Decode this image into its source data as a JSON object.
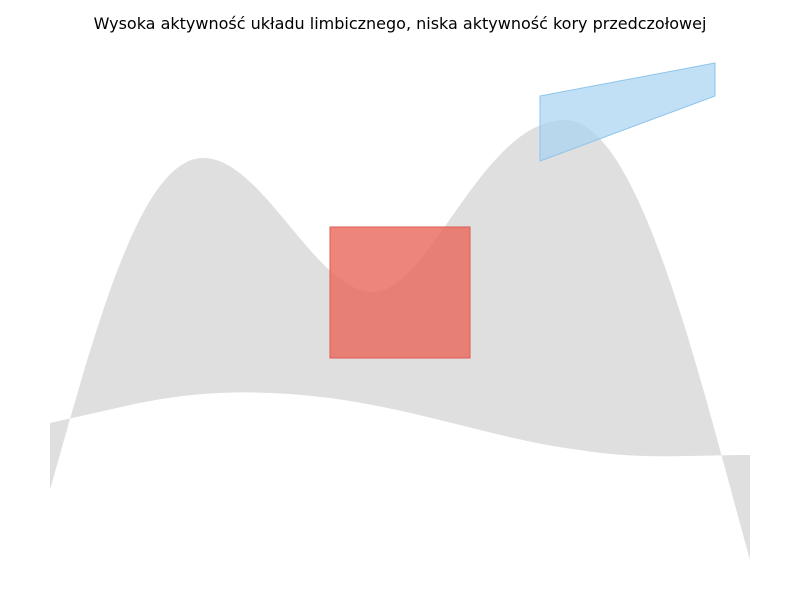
{
  "figure": {
    "title": "Wysoka aktywność układu limbicznego, niska aktywność kory przedczołowej"
  },
  "colors": {
    "background": "#ffffff",
    "brain_shape": "#dfdfdf",
    "limbic_region": "#e8675a",
    "prefrontal_region": "#a9d4f2",
    "prefrontal_stroke": "#8fc5ea"
  }
}
